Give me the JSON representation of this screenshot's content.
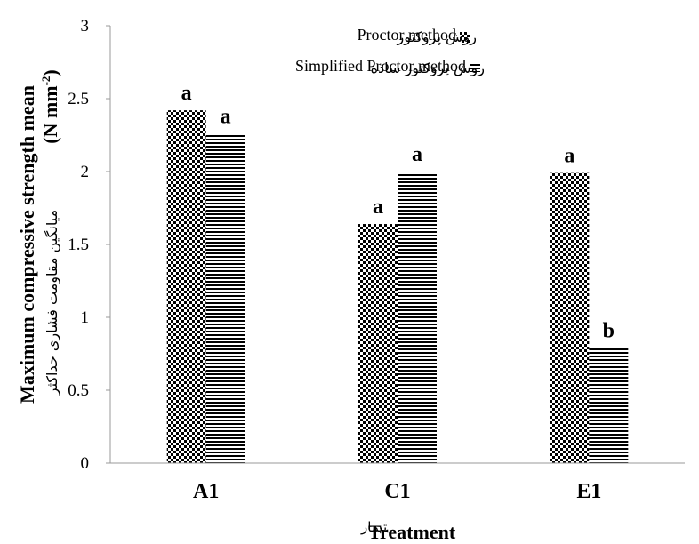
{
  "chart_data": {
    "type": "bar",
    "categories": [
      "A1",
      "C1",
      "E1"
    ],
    "series": [
      {
        "name": "Proctor method",
        "name_fa": "روش پروکتور",
        "pattern": "checker",
        "values": [
          2.42,
          1.64,
          1.99
        ],
        "significance": [
          "a",
          "a",
          "a"
        ]
      },
      {
        "name": "Simplified Proctor method",
        "name_fa": "روش پروکتور ساده",
        "pattern": "horizontal-stripes",
        "values": [
          2.26,
          2.0,
          0.79
        ],
        "significance": [
          "a",
          "a",
          "b"
        ]
      }
    ],
    "ylim": [
      0,
      3
    ],
    "yticks": [
      "0",
      "0.5",
      "1",
      "1.5",
      "2",
      "2.5",
      "3"
    ],
    "ylabel_line1": "Maximum compressive strength mean",
    "ylabel_unit": "(N mm",
    "ylabel_unit_sup": "-2",
    "ylabel_fa": "میانگین مقاومت فشاری حداکثر",
    "xlabel": "Treatment",
    "xlabel_fa": "تیمار",
    "legend_position": "top-right",
    "grid": false
  }
}
